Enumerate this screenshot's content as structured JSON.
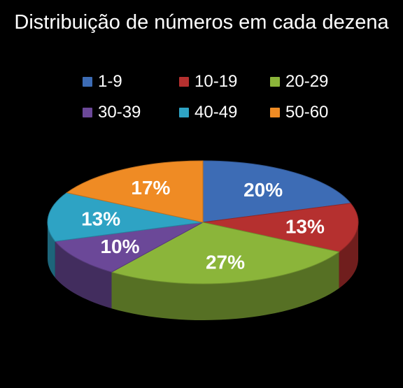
{
  "chart_data": {
    "type": "pie",
    "title": "Distribuição de números em cada dezena",
    "categories": [
      "1-9",
      "10-19",
      "20-29",
      "30-39",
      "40-49",
      "50-60"
    ],
    "values": [
      20,
      13,
      27,
      10,
      13,
      17
    ],
    "value_labels": [
      "20%",
      "13%",
      "27%",
      "10%",
      "13%",
      "17%"
    ],
    "colors": [
      "#3D6CB5",
      "#B5302F",
      "#8BB53A",
      "#6B4898",
      "#2EA3C4",
      "#EF8B24"
    ],
    "legend_position": "top",
    "style": "3d"
  }
}
